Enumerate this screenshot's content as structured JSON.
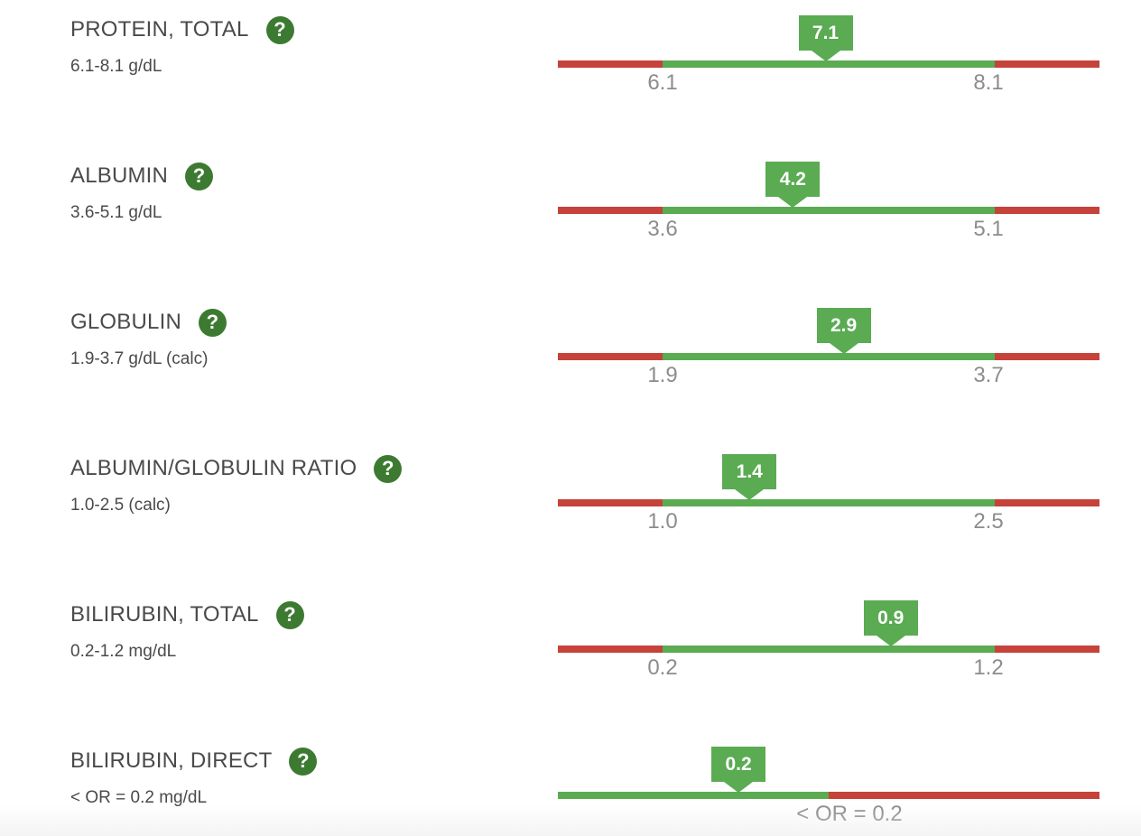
{
  "colors": {
    "in_range": "#5aab52",
    "out_of_range": "#c5433b",
    "help_icon": "#3d7a31"
  },
  "icons": {
    "help": "question-mark-circle"
  },
  "tests": [
    {
      "name": "PROTEIN, TOTAL",
      "help": "?",
      "range": "6.1-8.1 g/dL",
      "value": "7.1",
      "value_num": 7.1,
      "gauge_type": "two_sided",
      "low": 6.1,
      "high": 8.1,
      "low_label": "6.1",
      "high_label": "8.1"
    },
    {
      "name": "ALBUMIN",
      "help": "?",
      "range": "3.6-5.1 g/dL",
      "value": "4.2",
      "value_num": 4.2,
      "gauge_type": "two_sided",
      "low": 3.6,
      "high": 5.1,
      "low_label": "3.6",
      "high_label": "5.1"
    },
    {
      "name": "GLOBULIN",
      "help": "?",
      "range": "1.9-3.7 g/dL (calc)",
      "value": "2.9",
      "value_num": 2.9,
      "gauge_type": "two_sided",
      "low": 1.9,
      "high": 3.7,
      "low_label": "1.9",
      "high_label": "3.7"
    },
    {
      "name": "ALBUMIN/GLOBULIN RATIO",
      "help": "?",
      "range": "1.0-2.5 (calc)",
      "value": "1.4",
      "value_num": 1.4,
      "gauge_type": "two_sided",
      "low": 1.0,
      "high": 2.5,
      "low_label": "1.0",
      "high_label": "2.5"
    },
    {
      "name": "BILIRUBIN, TOTAL",
      "help": "?",
      "range": "0.2-1.2 mg/dL",
      "value": "0.9",
      "value_num": 0.9,
      "gauge_type": "two_sided",
      "low": 0.2,
      "high": 1.2,
      "low_label": "0.2",
      "high_label": "1.2"
    },
    {
      "name": "BILIRUBIN, DIRECT",
      "help": "?",
      "range": "< OR = 0.2 mg/dL",
      "value": "0.2",
      "value_num": 0.2,
      "gauge_type": "upper_limit",
      "high": 0.2,
      "threshold_label": "< OR = 0.2"
    }
  ]
}
